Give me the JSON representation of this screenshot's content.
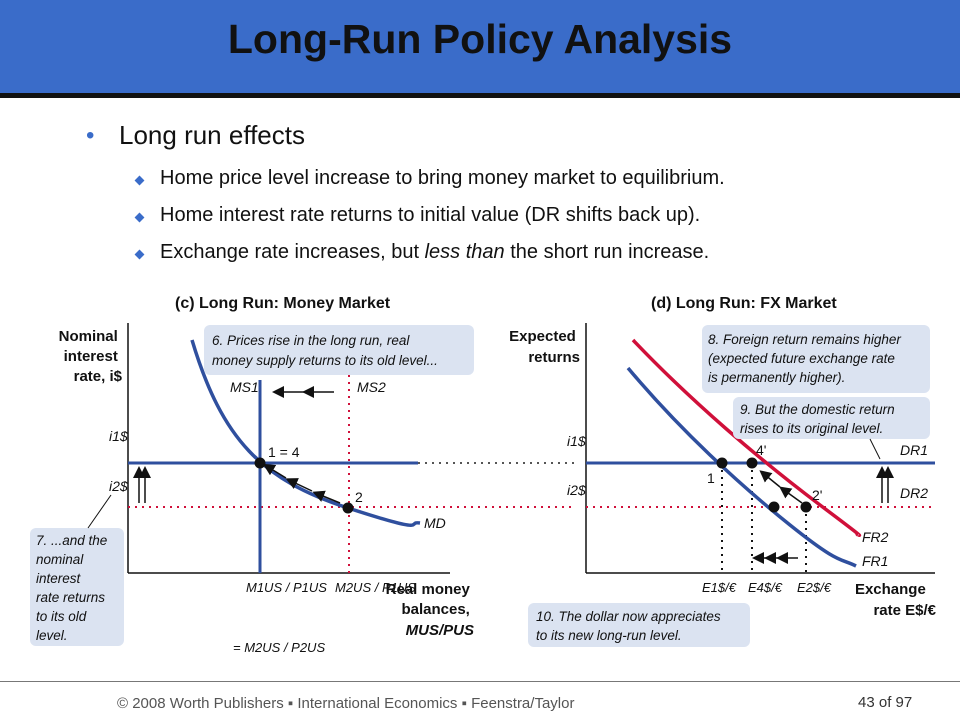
{
  "slide": {
    "title": "Long-Run Policy Analysis",
    "bullet": "Long run effects",
    "sub_bullets": [
      "Home price level increase to bring money market to equilibrium.",
      "Home interest rate returns to initial value (DR shifts back up).",
      "Exchange rate increases, but ",
      "less than",
      " the short run increase."
    ]
  },
  "panel_c": {
    "title": "(c) Long Run: Money Market",
    "y_axis": [
      "Nominal",
      "interest",
      "rate, i$"
    ],
    "x_axis": [
      "Real money",
      "balances,",
      "MUS/PUS"
    ],
    "curves": {
      "ms1": "MS1",
      "ms2": "MS2",
      "md": "MD"
    },
    "points": {
      "p14": "1 = 4",
      "p2": "2"
    },
    "ticks": {
      "i1": "i1$",
      "i2": "i2$",
      "m1": "M1US / P1US",
      "m2": "M2US / P1US",
      "m3": "= M2US / P2US"
    },
    "note6": [
      "6. Prices rise in the long run, real",
      "money supply returns to its old level..."
    ],
    "note7": [
      "7. ...and the",
      "nominal",
      "interest",
      "rate returns",
      "to its old",
      "level."
    ]
  },
  "panel_d": {
    "title": "(d) Long Run: FX Market",
    "y_axis": [
      "Expected",
      "returns"
    ],
    "x_axis": [
      "Exchange",
      "rate E$/€"
    ],
    "curves": {
      "dr1": "DR1",
      "dr2": "DR2",
      "fr1": "FR1",
      "fr2": "FR2"
    },
    "points": {
      "p1": "1",
      "p2": "2'",
      "p4": "4'"
    },
    "ticks": {
      "i1": "i1$",
      "i2": "i2$",
      "e1": "E1$/€",
      "e4": "E4$/€",
      "e2": "E2$/€"
    },
    "note8": [
      "8. Foreign return remains higher",
      "(expected future exchange rate",
      "is permanently higher)."
    ],
    "note9": [
      "9. But the domestic return",
      "rises to its original level."
    ],
    "note10": [
      "10. The dollar now appreciates",
      "to its new long-run level."
    ]
  },
  "footer": {
    "text": "© 2008 Worth Publishers ▪ International Economics ▪ Feenstra/Taylor",
    "page": "43 of 97"
  },
  "colors": {
    "accent": "#3a6cc9",
    "curve_blue": "#2f4f9e",
    "curve_red": "#d0103a",
    "note_bg": "#dbe3f1"
  }
}
